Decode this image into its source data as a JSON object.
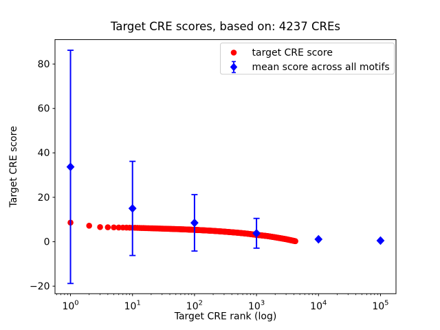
{
  "chart_data": {
    "type": "scatter",
    "title": "Target CRE scores, based on: 4237 CREs",
    "xlabel": "Target CRE rank (log)",
    "ylabel": "Target CRE score",
    "xscale": "log",
    "xlim": [
      0.5623,
      177828
    ],
    "ylim": [
      -23.4,
      91.0
    ],
    "grid": false,
    "xticks": {
      "values": [
        1,
        10,
        100,
        1000,
        10000,
        100000
      ],
      "base": "10",
      "exponents": [
        "0",
        "1",
        "2",
        "3",
        "4",
        "5"
      ]
    },
    "yticks": {
      "values": [
        -20,
        0,
        20,
        40,
        60,
        80
      ],
      "labels": [
        "−20",
        "0",
        "20",
        "40",
        "60",
        "80"
      ]
    },
    "series": [
      {
        "name": "target CRE score",
        "color": "#ff0000",
        "marker": "circle",
        "n_points": 4237,
        "rank_range": [
          1,
          4237
        ],
        "sampled_points": [
          [
            1,
            8.6
          ],
          [
            2,
            7.2
          ],
          [
            3,
            6.6
          ],
          [
            4,
            6.5
          ],
          [
            5,
            6.45
          ],
          [
            6,
            6.4
          ],
          [
            8,
            6.35
          ],
          [
            10,
            6.3
          ],
          [
            15,
            6.15
          ],
          [
            20,
            6.05
          ],
          [
            30,
            5.9
          ],
          [
            50,
            5.7
          ],
          [
            70,
            5.55
          ],
          [
            100,
            5.35
          ],
          [
            150,
            5.1
          ],
          [
            200,
            4.9
          ],
          [
            300,
            4.55
          ],
          [
            500,
            4.05
          ],
          [
            700,
            3.65
          ],
          [
            1000,
            3.1
          ],
          [
            1500,
            2.55
          ],
          [
            2000,
            2.0
          ],
          [
            3000,
            1.15
          ],
          [
            4000,
            0.4
          ],
          [
            4237,
            0.25
          ]
        ]
      },
      {
        "name": "mean score across all motifs",
        "color": "#0000ff",
        "marker": "diamond",
        "points": [
          [
            1,
            33.7
          ],
          [
            10,
            15.0
          ],
          [
            100,
            8.5
          ],
          [
            1000,
            3.8
          ],
          [
            10000,
            1.1
          ],
          [
            100000,
            0.5
          ]
        ],
        "yerr": [
          52.5,
          21.2,
          12.7,
          6.7,
          0,
          0
        ]
      }
    ],
    "legend": {
      "position": "upper right"
    }
  }
}
